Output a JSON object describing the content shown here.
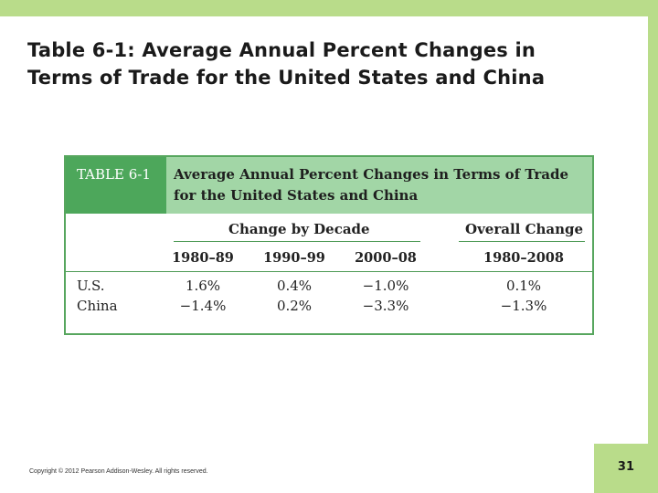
{
  "slide": {
    "title_line1": "Table 6-1: Average Annual Percent Changes in",
    "title_line2": "Terms of Trade for the United States and China",
    "copyright": "Copyright © 2012 Pearson Addison-Wesley. All rights reserved.",
    "page_number": "31"
  },
  "table": {
    "label": "TABLE 6-1",
    "caption_line1": "Average Annual Percent Changes in Terms of Trade",
    "caption_line2": "for the United States and China",
    "group_headers": [
      "Change by Decade",
      "Overall Change"
    ],
    "columns": [
      "1980–89",
      "1990–99",
      "2000–08",
      "1980–2008"
    ],
    "rows": [
      {
        "label": "U.S.",
        "values": [
          "1.6%",
          "0.4%",
          "−1.0%",
          "0.1%"
        ]
      },
      {
        "label": "China",
        "values": [
          "−1.4%",
          "0.2%",
          "−3.3%",
          "−1.3%"
        ]
      }
    ]
  },
  "colors": {
    "accent_bar": "#b9dc8a",
    "table_header_bg": "#a2d6a6",
    "table_label_bg": "#4da75b",
    "table_border": "#57a65e"
  }
}
